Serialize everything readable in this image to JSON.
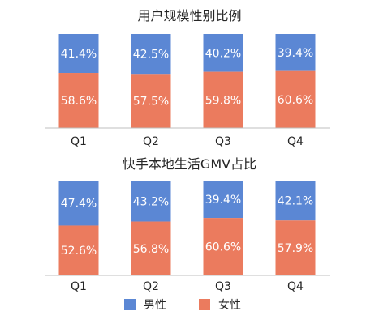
{
  "chart_data": [
    {
      "type": "bar",
      "stacked": true,
      "percent_stacked": true,
      "title": "用户规模性别比例",
      "categories": [
        "Q1",
        "Q2",
        "Q3",
        "Q4"
      ],
      "series": [
        {
          "name": "男性",
          "values": [
            41.4,
            42.5,
            40.2,
            39.4
          ],
          "labels": [
            "41.4%",
            "42.5%",
            "40.2%",
            "39.4%"
          ],
          "color": "#5B87D4"
        },
        {
          "name": "女性",
          "values": [
            58.6,
            57.5,
            59.8,
            60.6
          ],
          "labels": [
            "58.6%",
            "57.5%",
            "59.8%",
            "60.6%"
          ],
          "color": "#EB7B5E"
        }
      ],
      "ylim": [
        0,
        100
      ],
      "grid": false
    },
    {
      "type": "bar",
      "stacked": true,
      "percent_stacked": true,
      "title": "快手本地生活GMV占比",
      "categories": [
        "Q1",
        "Q2",
        "Q3",
        "Q4"
      ],
      "series": [
        {
          "name": "男性",
          "values": [
            47.4,
            43.2,
            39.4,
            42.1
          ],
          "labels": [
            "47.4%",
            "43.2%",
            "39.4%",
            "42.1%"
          ],
          "color": "#5B87D4"
        },
        {
          "name": "女性",
          "values": [
            52.6,
            56.8,
            60.6,
            57.9
          ],
          "labels": [
            "52.6%",
            "56.8%",
            "60.6%",
            "57.9%"
          ],
          "color": "#EB7B5E"
        }
      ],
      "ylim": [
        0,
        100
      ],
      "grid": false
    }
  ],
  "legend": {
    "placement": "bottom-center",
    "items": [
      {
        "label": "男性",
        "color": "#5B87D4"
      },
      {
        "label": "女性",
        "color": "#EB7B5E"
      }
    ]
  }
}
